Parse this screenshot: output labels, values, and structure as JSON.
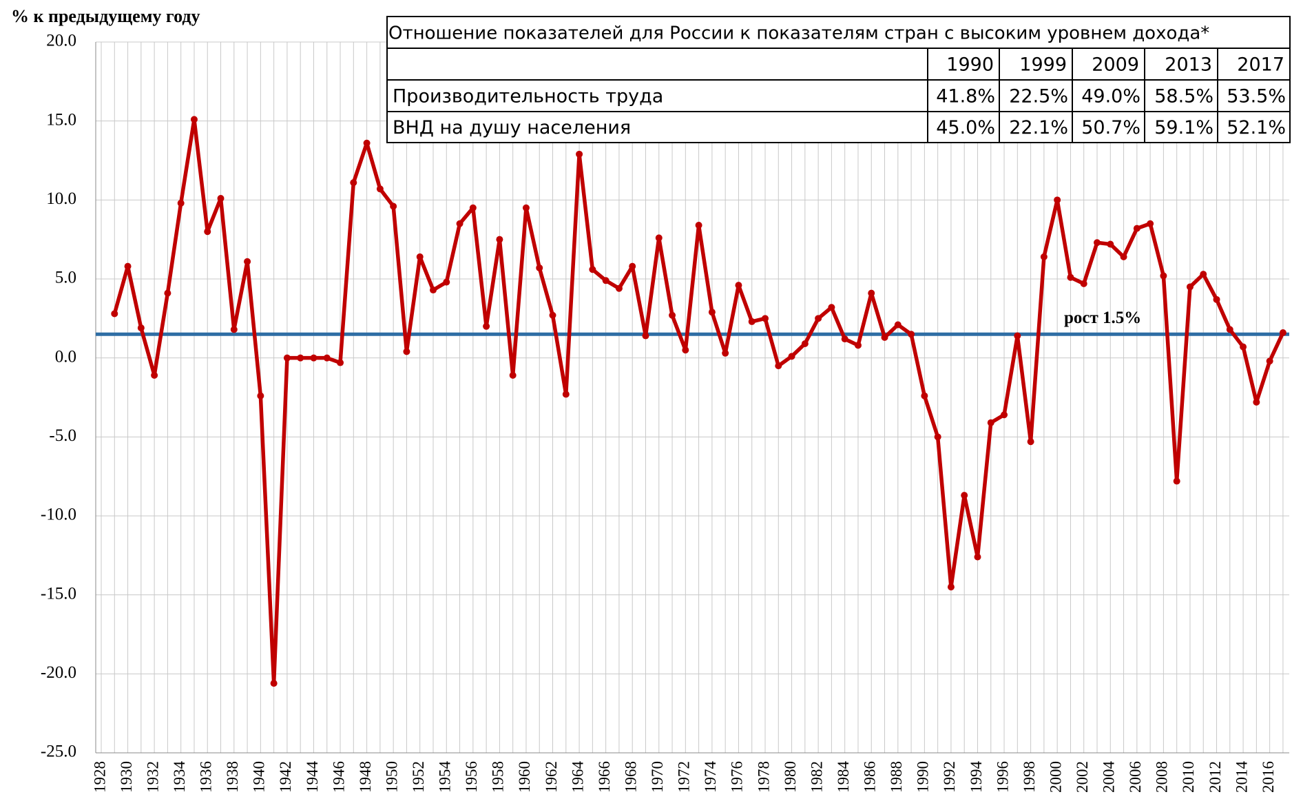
{
  "chart_data": {
    "type": "line",
    "y_label": "% к предыдущему году",
    "categories": [
      "1928",
      null,
      "1930",
      null,
      "1932",
      null,
      "1934",
      null,
      "1936",
      null,
      "1938",
      null,
      "1940",
      null,
      "1942",
      null,
      "1944",
      null,
      "1946",
      null,
      "1948",
      null,
      "1950",
      null,
      "1952",
      null,
      "1954",
      null,
      "1956",
      null,
      "1958",
      null,
      "1960",
      null,
      "1962",
      null,
      "1964",
      null,
      "1966",
      null,
      "1968",
      null,
      "1970",
      null,
      "1972",
      null,
      "1974",
      null,
      "1976",
      null,
      "1978",
      null,
      "1980",
      null,
      "1982",
      null,
      "1984",
      null,
      "1986",
      null,
      "1988",
      null,
      "1990",
      null,
      "1992",
      null,
      "1994",
      null,
      "1996",
      null,
      "1998",
      null,
      "2000",
      null,
      "2002",
      null,
      "2004",
      null,
      "2006",
      null,
      "2008",
      null,
      "2010",
      null,
      "2012",
      null,
      "2014",
      null,
      "2016",
      null
    ],
    "series": [
      {
        "color": "#c00000",
        "values": [
          null,
          2.8,
          5.8,
          1.9,
          -1.1,
          4.1,
          9.8,
          15.1,
          8.0,
          10.1,
          1.8,
          6.1,
          -2.4,
          -20.6,
          0.0,
          0.0,
          0.0,
          0.0,
          -0.3,
          11.1,
          13.6,
          10.7,
          9.6,
          0.4,
          6.4,
          4.3,
          4.8,
          8.5,
          9.5,
          2.0,
          7.5,
          -1.1,
          9.5,
          5.7,
          2.7,
          -2.3,
          12.9,
          5.6,
          4.9,
          4.4,
          5.8,
          1.4,
          7.6,
          2.7,
          0.5,
          8.4,
          2.9,
          0.3,
          4.6,
          2.3,
          2.5,
          -0.5,
          0.1,
          0.9,
          2.5,
          3.2,
          1.2,
          0.8,
          4.1,
          1.3,
          2.1,
          1.5,
          -2.4,
          -5.0,
          -14.5,
          -8.7,
          -12.6,
          -4.1,
          -3.6,
          1.4,
          -5.3,
          6.4,
          10.0,
          5.1,
          4.7,
          7.3,
          7.2,
          6.4,
          8.2,
          8.5,
          5.2,
          -7.8,
          4.5,
          5.3,
          3.7,
          1.8,
          0.7,
          -2.8,
          -0.2,
          1.6
        ]
      }
    ],
    "avg_line": {
      "value": 1.5,
      "label": "рост 1.5%",
      "color": "#2e6da4"
    },
    "ylim": [
      -25,
      20
    ],
    "yticks": [
      {
        "value": -25,
        "label": "-25.0"
      },
      {
        "value": -20,
        "label": "-20.0"
      },
      {
        "value": -15,
        "label": "-15.0"
      },
      {
        "value": -10,
        "label": "-10.0"
      },
      {
        "value": -5,
        "label": "-5.0"
      },
      {
        "value": 0,
        "label": "0.0"
      },
      {
        "value": 5,
        "label": "5.0"
      },
      {
        "value": 10,
        "label": "10.0"
      },
      {
        "value": 15,
        "label": "15.0"
      },
      {
        "value": 20,
        "label": "20.0"
      }
    ],
    "grid": true
  },
  "table": {
    "title": "Отношение показателей для России к показателям стран с высоким уровнем дохода*",
    "columns": [
      "1990",
      "1999",
      "2009",
      "2013",
      "2017"
    ],
    "rows": [
      [
        "Производительность труда",
        "41.8%",
        "22.5%",
        "49.0%",
        "58.5%",
        "53.5%"
      ],
      [
        "ВНД на душу населения",
        "45.0%",
        "22.1%",
        "50.7%",
        "59.1%",
        "52.1%"
      ]
    ]
  }
}
